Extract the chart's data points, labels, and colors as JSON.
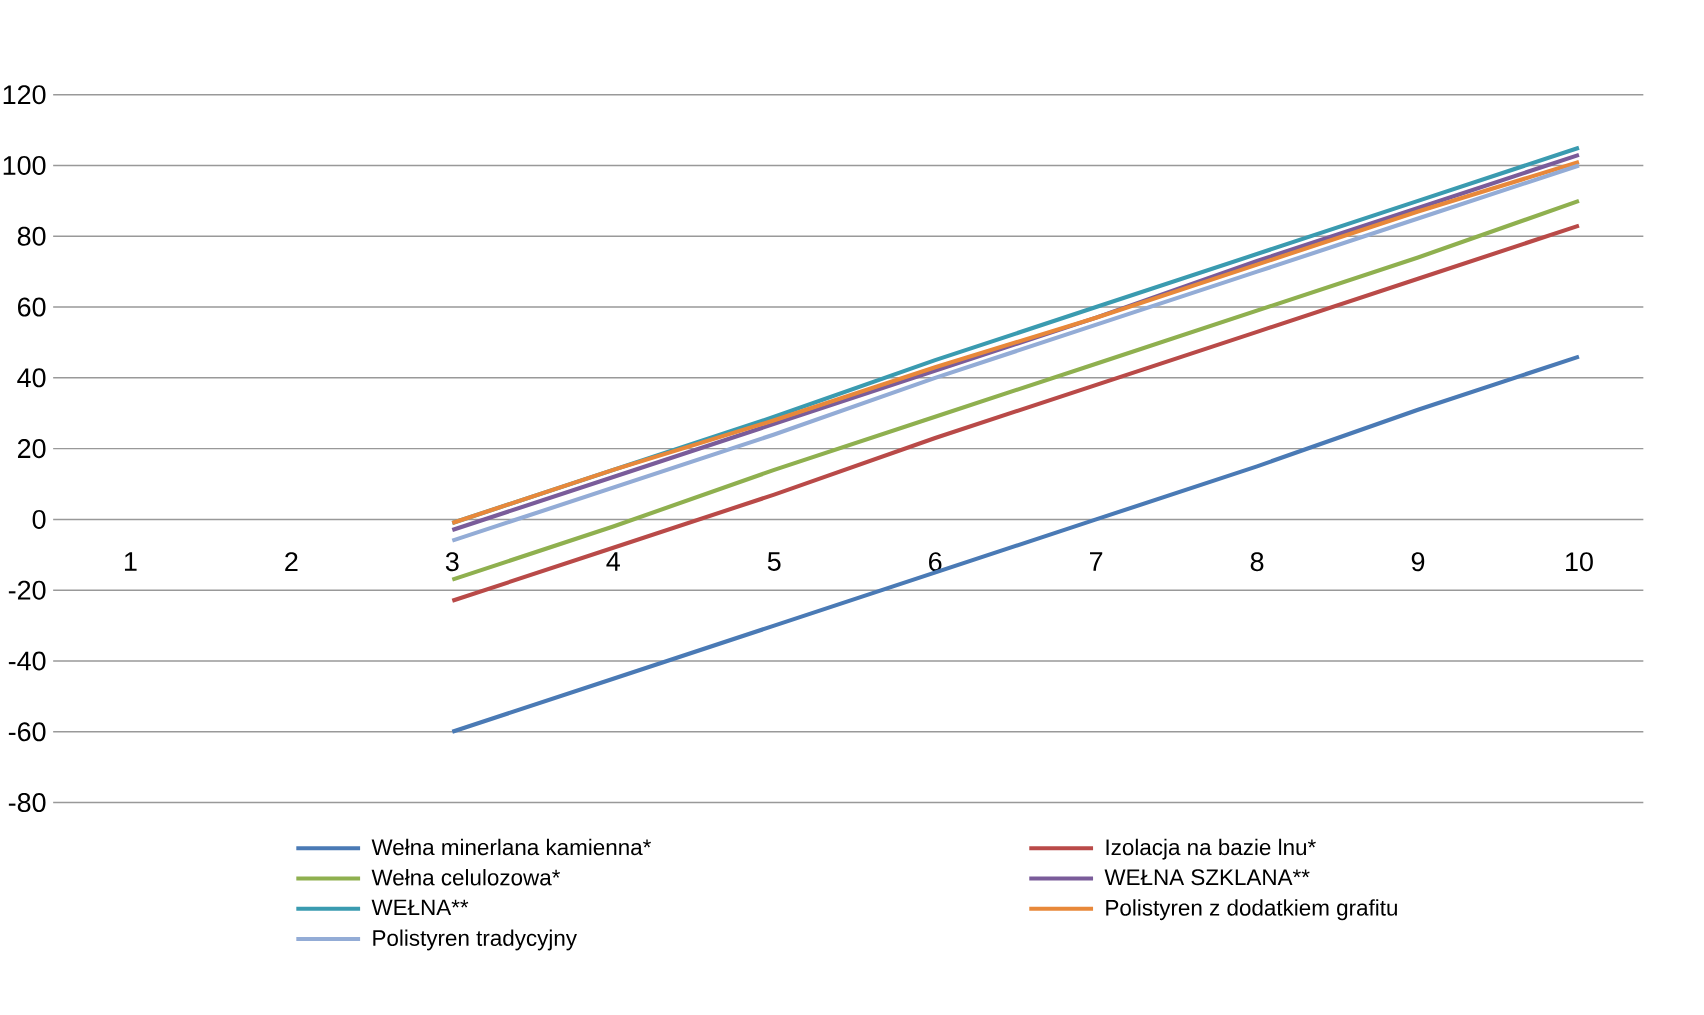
{
  "chart_data": {
    "type": "line",
    "categories": [
      "1",
      "2",
      "3",
      "4",
      "5",
      "6",
      "7",
      "8",
      "9",
      "10"
    ],
    "series": [
      {
        "name": "Wełna minerlana kamienna*",
        "color": "#4a7ab5",
        "values": [
          null,
          null,
          -60,
          -45,
          -30,
          -15,
          0,
          15,
          31,
          46
        ]
      },
      {
        "name": "Izolacja na bazie lnu*",
        "color": "#b94a48",
        "values": [
          null,
          null,
          -23,
          -8,
          7,
          23,
          38,
          53,
          68,
          83
        ]
      },
      {
        "name": "Wełna celulozowa*",
        "color": "#8fb04f",
        "values": [
          null,
          null,
          -17,
          -2,
          14,
          29,
          44,
          59,
          74,
          90
        ]
      },
      {
        "name": "WEŁNA SZKLANA**",
        "color": "#7a5c9a",
        "values": [
          null,
          null,
          -3,
          12,
          27,
          42,
          57,
          73,
          88,
          103
        ]
      },
      {
        "name": "WEŁNA**",
        "color": "#3a9bb0",
        "values": [
          null,
          null,
          -1,
          14,
          29,
          45,
          60,
          75,
          90,
          105
        ]
      },
      {
        "name": "Polistyren z dodatkiem grafitu",
        "color": "#e8883a",
        "values": [
          null,
          null,
          -1,
          14,
          28,
          43,
          57,
          72,
          87,
          101
        ]
      },
      {
        "name": "Polistyren tradycyjny",
        "color": "#93acd6",
        "values": [
          null,
          null,
          -6,
          9,
          24,
          40,
          55,
          70,
          85,
          100
        ]
      }
    ],
    "ylim": [
      -80,
      120
    ],
    "yticks": [
      -80,
      -60,
      -40,
      -20,
      0,
      20,
      40,
      60,
      80,
      100,
      120
    ],
    "grid": "y",
    "legend": "bottom",
    "marker": "none",
    "line_style": "solid"
  }
}
